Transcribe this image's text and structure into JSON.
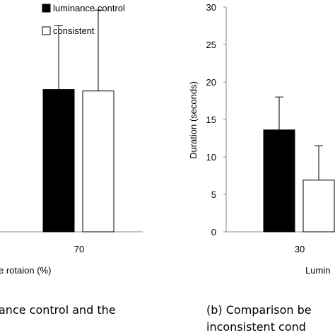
{
  "chart_data": [
    {
      "panel": "a",
      "type": "bar",
      "categories": [
        "70"
      ],
      "series": [
        {
          "name": "luminance control",
          "values": [
            19
          ],
          "error": [
            8.5
          ],
          "color": "#000000"
        },
        {
          "name": "consistent",
          "values": [
            18.8
          ],
          "error": [
            10.8
          ],
          "color": "#ffffff"
        }
      ],
      "xlabel_visible": "e rotaion (%)",
      "ylim": [
        0,
        30
      ],
      "legend": "top",
      "caption_visible": "ance control and the"
    },
    {
      "panel": "b",
      "type": "bar",
      "categories": [
        "30"
      ],
      "series": [
        {
          "name": "",
          "values": [
            13.6
          ],
          "error": [
            4.4
          ],
          "color": "#000000"
        },
        {
          "name": "",
          "values": [
            6.9
          ],
          "error": [
            4.6
          ],
          "color": "#ffffff"
        }
      ],
      "ylabel": "Duration (seconds)",
      "yticks": [
        0,
        5,
        10,
        15,
        20,
        25,
        30
      ],
      "ylim": [
        0,
        30
      ],
      "xlabel_visible": "Lumin",
      "caption_line1": "(b) Comparison be",
      "caption_line2": "inconsistent cond"
    }
  ]
}
